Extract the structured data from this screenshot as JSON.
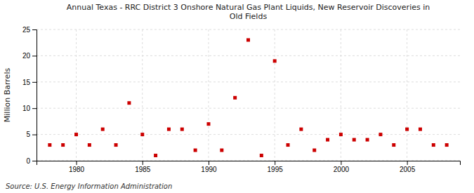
{
  "chart_data": {
    "type": "scatter",
    "title": "Annual Texas - RRC District 3 Onshore Natural Gas Plant Liquids,  New Reservoir Discoveries in\nOld Fields",
    "ylabel": "Million Barrels",
    "annotations": [
      "Source: U.S. Energy Information Administration"
    ],
    "x": [
      1978,
      1979,
      1980,
      1981,
      1982,
      1983,
      1984,
      1985,
      1986,
      1987,
      1988,
      1989,
      1990,
      1991,
      1992,
      1993,
      1994,
      1995,
      1996,
      1997,
      1998,
      1999,
      2000,
      2001,
      2002,
      2003,
      2004,
      2005,
      2006,
      2007,
      2008
    ],
    "values": [
      3,
      3,
      5,
      3,
      6,
      3,
      11,
      5,
      1,
      6,
      6,
      2,
      7,
      2,
      12,
      23,
      1,
      19,
      3,
      6,
      2,
      4,
      5,
      4,
      4,
      5,
      3,
      6,
      6,
      3,
      3
    ],
    "color": "#cc0000",
    "marker": "square",
    "xlim": [
      1977,
      2009
    ],
    "ylim": [
      0,
      25
    ],
    "xticks": [
      1980,
      1985,
      1990,
      1995,
      2000,
      2005
    ],
    "yticks": [
      0,
      5,
      10,
      15,
      20,
      25
    ],
    "grid": true
  }
}
